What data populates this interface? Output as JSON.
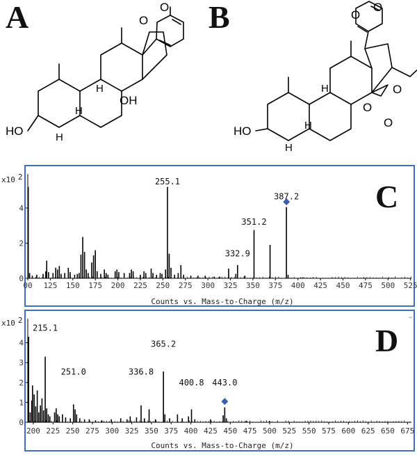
{
  "panel_labels": {
    "a": "A",
    "b": "B",
    "c": "C",
    "d": "D"
  },
  "structures": {
    "a": {
      "oxo": "O",
      "ring_o": "O",
      "ho": "HO",
      "h_c8": "H",
      "h_c9": "H",
      "h_c5": "H",
      "oh_c14": "OH"
    },
    "b": {
      "oxo": "O",
      "ring_o": "O",
      "ho": "HO",
      "h_c8": "H",
      "h_c9": "H",
      "h_c5": "H",
      "epox_o": "O",
      "ester_o": "O",
      "carbonyl_o": "O"
    }
  },
  "chart_data": [
    {
      "type": "bar",
      "panel": "C",
      "multiplier": "x10",
      "multiplier_exp": "2",
      "xlabel": "Counts vs. Mass-to-Charge (m/z)",
      "ylabel": "",
      "xlim": [
        100,
        526
      ],
      "ylim": [
        0,
        5.7
      ],
      "xticks": [
        "00",
        "125",
        "150",
        "175",
        "200",
        "225",
        "250",
        "275",
        "300",
        "325",
        "350",
        "375",
        "400",
        "425",
        "450",
        "475",
        "500",
        "525"
      ],
      "yticks": [
        "0",
        "2",
        "4"
      ],
      "peak_labels": [
        {
          "x": 255.1,
          "y": 5.35,
          "text": "255.1"
        },
        {
          "x": 351.2,
          "y": 3.05,
          "text": "351.2"
        },
        {
          "x": 332.9,
          "y": 1.25,
          "text": "332.9"
        },
        {
          "x": 387.2,
          "y": 4.5,
          "text": "387.2"
        }
      ],
      "precursor": {
        "x": 387.2,
        "y": 4.35
      },
      "peaks": [
        {
          "x": 100.5,
          "y": 5.2
        },
        {
          "x": 102,
          "y": 0.3
        },
        {
          "x": 105,
          "y": 0.15
        },
        {
          "x": 110,
          "y": 0.2
        },
        {
          "x": 117,
          "y": 0.25
        },
        {
          "x": 120,
          "y": 0.4
        },
        {
          "x": 121,
          "y": 1.0
        },
        {
          "x": 123,
          "y": 0.35
        },
        {
          "x": 128,
          "y": 0.3
        },
        {
          "x": 131,
          "y": 0.6
        },
        {
          "x": 133,
          "y": 0.5
        },
        {
          "x": 135,
          "y": 0.7
        },
        {
          "x": 137,
          "y": 0.25
        },
        {
          "x": 141,
          "y": 0.3
        },
        {
          "x": 145,
          "y": 0.6
        },
        {
          "x": 147,
          "y": 0.35
        },
        {
          "x": 152,
          "y": 0.2
        },
        {
          "x": 155,
          "y": 0.25
        },
        {
          "x": 157,
          "y": 0.3
        },
        {
          "x": 159,
          "y": 1.35
        },
        {
          "x": 161,
          "y": 2.35
        },
        {
          "x": 163,
          "y": 1.5
        },
        {
          "x": 165,
          "y": 0.5
        },
        {
          "x": 167,
          "y": 0.3
        },
        {
          "x": 171,
          "y": 0.9
        },
        {
          "x": 173,
          "y": 1.3
        },
        {
          "x": 175,
          "y": 1.6
        },
        {
          "x": 177,
          "y": 0.4
        },
        {
          "x": 181,
          "y": 0.25
        },
        {
          "x": 185,
          "y": 0.5
        },
        {
          "x": 187,
          "y": 0.3
        },
        {
          "x": 189,
          "y": 0.2
        },
        {
          "x": 197,
          "y": 0.4
        },
        {
          "x": 199,
          "y": 0.5
        },
        {
          "x": 201,
          "y": 0.35
        },
        {
          "x": 207,
          "y": 0.3
        },
        {
          "x": 213,
          "y": 0.3
        },
        {
          "x": 215,
          "y": 0.5
        },
        {
          "x": 217,
          "y": 0.4
        },
        {
          "x": 225,
          "y": 0.2
        },
        {
          "x": 229,
          "y": 0.4
        },
        {
          "x": 231,
          "y": 0.3
        },
        {
          "x": 237,
          "y": 0.55
        },
        {
          "x": 239,
          "y": 0.3
        },
        {
          "x": 243,
          "y": 0.2
        },
        {
          "x": 247,
          "y": 0.3
        },
        {
          "x": 249,
          "y": 0.25
        },
        {
          "x": 253,
          "y": 0.5
        },
        {
          "x": 255.1,
          "y": 5.2
        },
        {
          "x": 257,
          "y": 1.4
        },
        {
          "x": 259,
          "y": 0.6
        },
        {
          "x": 263,
          "y": 0.2
        },
        {
          "x": 267,
          "y": 0.3
        },
        {
          "x": 270,
          "y": 0.75
        },
        {
          "x": 273,
          "y": 0.2
        },
        {
          "x": 281,
          "y": 0.15
        },
        {
          "x": 289,
          "y": 0.15
        },
        {
          "x": 297,
          "y": 0.15
        },
        {
          "x": 307,
          "y": 0.1
        },
        {
          "x": 313,
          "y": 0.1
        },
        {
          "x": 323,
          "y": 0.55
        },
        {
          "x": 331,
          "y": 0.25
        },
        {
          "x": 332.9,
          "y": 0.75
        },
        {
          "x": 341,
          "y": 0.15
        },
        {
          "x": 351.2,
          "y": 2.75
        },
        {
          "x": 369,
          "y": 1.9
        },
        {
          "x": 387.2,
          "y": 4.05
        },
        {
          "x": 389,
          "y": 0.2
        },
        {
          "x": 405,
          "y": 0.05
        }
      ]
    },
    {
      "type": "bar",
      "panel": "D",
      "multiplier": "x10",
      "multiplier_exp": "2",
      "xlabel": "Counts vs. Mass-to-Charge (m/z)",
      "ylabel": "",
      "xlim": [
        193,
        680
      ],
      "ylim": [
        0,
        5.0
      ],
      "xticks": [
        "200",
        "225",
        "250",
        "275",
        "300",
        "325",
        "350",
        "375",
        "400",
        "425",
        "450",
        "475",
        "500",
        "525",
        "550",
        "575",
        "600",
        "625",
        "650",
        "675"
      ],
      "yticks": [
        "0",
        "1",
        "2",
        "3",
        "4"
      ],
      "peak_labels": [
        {
          "x": 215.1,
          "y": 4.6,
          "text": "215.1"
        },
        {
          "x": 251.0,
          "y": 2.4,
          "text": "251.0"
        },
        {
          "x": 336.8,
          "y": 2.4,
          "text": "336.8"
        },
        {
          "x": 365.2,
          "y": 3.8,
          "text": "365.2"
        },
        {
          "x": 400.8,
          "y": 1.85,
          "text": "400.8"
        },
        {
          "x": 443.0,
          "y": 1.85,
          "text": "443.0"
        }
      ],
      "precursor": {
        "x": 443.0,
        "y": 1.05
      },
      "peaks": [
        {
          "x": 194,
          "y": 4.3
        },
        {
          "x": 196,
          "y": 0.5
        },
        {
          "x": 198,
          "y": 1.1
        },
        {
          "x": 199,
          "y": 1.85
        },
        {
          "x": 201,
          "y": 1.4
        },
        {
          "x": 203,
          "y": 0.8
        },
        {
          "x": 205,
          "y": 1.6
        },
        {
          "x": 207,
          "y": 0.5
        },
        {
          "x": 209,
          "y": 0.85
        },
        {
          "x": 211,
          "y": 1.2
        },
        {
          "x": 213,
          "y": 0.6
        },
        {
          "x": 215.1,
          "y": 3.3
        },
        {
          "x": 217,
          "y": 0.7
        },
        {
          "x": 219,
          "y": 0.4
        },
        {
          "x": 221,
          "y": 0.3
        },
        {
          "x": 227,
          "y": 0.5
        },
        {
          "x": 229,
          "y": 0.7
        },
        {
          "x": 231,
          "y": 0.4
        },
        {
          "x": 233,
          "y": 0.3
        },
        {
          "x": 237,
          "y": 0.4
        },
        {
          "x": 241,
          "y": 0.25
        },
        {
          "x": 247,
          "y": 0.2
        },
        {
          "x": 251.0,
          "y": 0.9
        },
        {
          "x": 253,
          "y": 0.65
        },
        {
          "x": 255,
          "y": 0.4
        },
        {
          "x": 259,
          "y": 0.2
        },
        {
          "x": 265,
          "y": 0.15
        },
        {
          "x": 271,
          "y": 0.15
        },
        {
          "x": 279,
          "y": 0.1
        },
        {
          "x": 287,
          "y": 0.1
        },
        {
          "x": 299,
          "y": 0.15
        },
        {
          "x": 311,
          "y": 0.2
        },
        {
          "x": 319,
          "y": 0.15
        },
        {
          "x": 323,
          "y": 0.3
        },
        {
          "x": 331,
          "y": 0.25
        },
        {
          "x": 336.8,
          "y": 0.85
        },
        {
          "x": 341,
          "y": 0.2
        },
        {
          "x": 347,
          "y": 0.65
        },
        {
          "x": 355,
          "y": 0.15
        },
        {
          "x": 365.2,
          "y": 2.55
        },
        {
          "x": 367,
          "y": 0.4
        },
        {
          "x": 373,
          "y": 0.2
        },
        {
          "x": 383,
          "y": 0.4
        },
        {
          "x": 389,
          "y": 0.2
        },
        {
          "x": 397,
          "y": 0.3
        },
        {
          "x": 400.8,
          "y": 0.65
        },
        {
          "x": 405,
          "y": 0.15
        },
        {
          "x": 425,
          "y": 0.15
        },
        {
          "x": 441,
          "y": 0.35
        },
        {
          "x": 443.0,
          "y": 0.75
        },
        {
          "x": 445,
          "y": 0.2
        },
        {
          "x": 470,
          "y": 0.08
        },
        {
          "x": 500,
          "y": 0.06
        }
      ]
    }
  ]
}
